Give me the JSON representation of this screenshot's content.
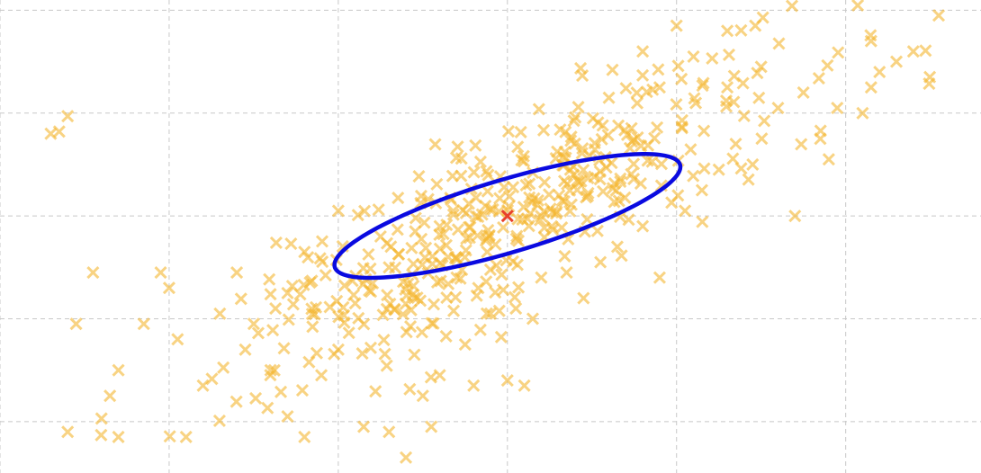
{
  "chart_data": {
    "type": "scatter",
    "title": "",
    "xlabel": "",
    "ylabel": "",
    "xlim": [
      -3,
      2.8
    ],
    "ylim": [
      -2.5,
      2.1
    ],
    "xticks": [
      -3,
      -2,
      -1,
      0,
      1,
      2
    ],
    "yticks": [
      -2,
      -1,
      0,
      1,
      2
    ],
    "grid": true,
    "colors": {
      "points": "#f5b731",
      "mean": "#e8412a",
      "ellipse": "#0a0ae0",
      "grid": "#c8c8c8"
    },
    "series": [
      {
        "marker": "x",
        "points_seed": 7,
        "count": 480,
        "mean": [
          0,
          0
        ],
        "cov": [
          [
            0.64,
            0.5
          ],
          [
            0.5,
            0.58
          ]
        ],
        "points": [
          [
            -2.6,
            0.97
          ],
          [
            -2.65,
            0.82
          ],
          [
            -2.4,
            -1.97
          ],
          [
            -2.3,
            -1.5
          ],
          [
            -2.35,
            -1.75
          ],
          [
            -2.55,
            -1.05
          ],
          [
            -2.45,
            -0.55
          ],
          [
            -2.0,
            -0.7
          ],
          [
            -1.95,
            -1.2
          ],
          [
            -1.8,
            -1.65
          ],
          [
            -1.9,
            -2.15
          ],
          [
            -2.3,
            -2.15
          ],
          [
            -2.6,
            -2.1
          ],
          [
            -1.7,
            -0.95
          ],
          [
            -1.5,
            -1.05
          ],
          [
            -1.4,
            -1.5
          ],
          [
            -1.3,
            -1.95
          ],
          [
            -1.2,
            -2.15
          ],
          [
            -1.1,
            -1.55
          ],
          [
            -1.0,
            -1.3
          ],
          [
            -0.9,
            -0.85
          ],
          [
            -1.6,
            -0.55
          ],
          [
            -1.3,
            -0.75
          ],
          [
            -0.7,
            -2.1
          ],
          [
            -0.6,
            -2.35
          ],
          [
            -0.5,
            -1.75
          ],
          [
            -0.4,
            -1.55
          ],
          [
            -0.2,
            -1.65
          ],
          [
            -0.55,
            -1.35
          ],
          [
            -0.45,
            -2.05
          ],
          [
            -0.85,
            -2.05
          ],
          [
            0.0,
            -1.6
          ],
          [
            -1.0,
            0.05
          ],
          [
            -0.4,
            -0.1
          ],
          [
            -0.3,
            -0.6
          ],
          [
            -0.1,
            -0.95
          ],
          [
            0.05,
            -0.9
          ],
          [
            0.15,
            -1.0
          ],
          [
            0.35,
            -0.55
          ],
          [
            0.45,
            -0.8
          ],
          [
            0.2,
            -0.6
          ],
          [
            -0.55,
            -0.8
          ],
          [
            -0.7,
            -0.5
          ],
          [
            -0.75,
            -0.2
          ],
          [
            -0.35,
            -0.4
          ],
          [
            0.55,
            -0.45
          ],
          [
            0.65,
            -0.3
          ],
          [
            0.8,
            -0.1
          ],
          [
            0.9,
            -0.6
          ],
          [
            1.05,
            0.05
          ],
          [
            1.15,
            0.25
          ],
          [
            1.25,
            0.45
          ],
          [
            1.35,
            0.7
          ],
          [
            1.45,
            0.5
          ],
          [
            1.6,
            1.05
          ],
          [
            1.85,
            0.75
          ],
          [
            1.9,
            0.55
          ],
          [
            2.1,
            1.0
          ],
          [
            2.2,
            1.4
          ],
          [
            2.3,
            1.5
          ],
          [
            2.55,
            1.95
          ],
          [
            2.4,
            1.6
          ],
          [
            2.15,
            1.7
          ],
          [
            1.5,
            1.45
          ],
          [
            1.3,
            1.25
          ],
          [
            1.75,
            1.2
          ],
          [
            0.8,
            1.6
          ],
          [
            1.0,
            1.85
          ],
          [
            1.3,
            1.8
          ],
          [
            1.1,
            1.55
          ],
          [
            0.6,
            1.15
          ],
          [
            0.9,
            1.25
          ],
          [
            1.7,
            0.0
          ],
          [
            1.95,
            1.05
          ],
          [
            2.15,
            1.25
          ],
          [
            -2.7,
            0.8
          ],
          [
            -2.05,
            -0.55
          ],
          [
            -2.15,
            -1.05
          ],
          [
            -1.55,
            -1.3
          ],
          [
            -1.2,
            -0.35
          ],
          [
            -0.25,
            -1.25
          ],
          [
            0.1,
            -1.65
          ]
        ],
        "dense_core": true
      }
    ],
    "mean_marker": [
      0.0,
      0.0
    ],
    "ellipse": {
      "center": [
        0.0,
        0.0
      ],
      "semi_major": 1.14,
      "semi_minor": 0.33,
      "angle_deg": 27.5
    }
  }
}
